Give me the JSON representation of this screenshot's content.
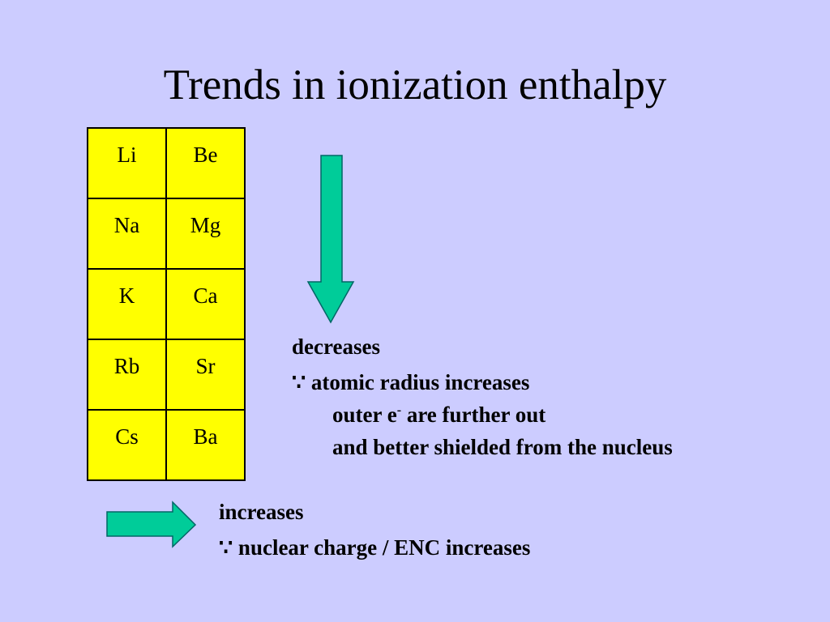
{
  "title": "Trends in ionization enthalpy",
  "table": {
    "rows": [
      [
        "Li",
        "Be"
      ],
      [
        "Na",
        "Mg"
      ],
      [
        "K",
        "Ca"
      ],
      [
        "Rb",
        "Sr"
      ],
      [
        "Cs",
        "Ba"
      ]
    ]
  },
  "down": {
    "label": "decreases",
    "reason": "∵ atomic radius increases",
    "line2": {
      "before": "outer e",
      "sup": "-",
      "after": " are further out"
    },
    "line3": "and better shielded from the nucleus"
  },
  "across": {
    "label": "increases",
    "reason": "∵ nuclear charge / ENC increases"
  }
}
